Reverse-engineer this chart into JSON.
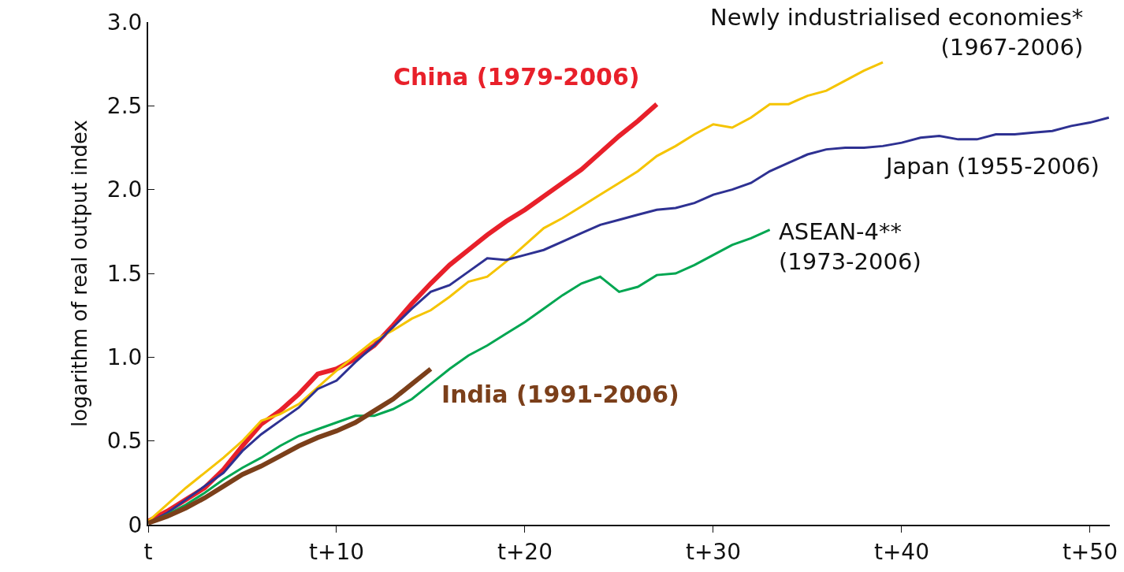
{
  "chart_data": {
    "type": "line",
    "ylabel": "logarithm of real output index",
    "categories": [
      "t",
      null,
      null,
      null,
      null,
      null,
      null,
      null,
      null,
      null,
      "t+10",
      null,
      null,
      null,
      null,
      null,
      null,
      null,
      null,
      null,
      "t+20",
      null,
      null,
      null,
      null,
      null,
      null,
      null,
      null,
      null,
      "t+30",
      null,
      null,
      null,
      null,
      null,
      null,
      null,
      null,
      null,
      "t+40",
      null,
      null,
      null,
      null,
      null,
      null,
      null,
      null,
      null,
      "t+50",
      null
    ],
    "ylim": [
      0,
      3.0
    ],
    "yticks": [
      0,
      0.5,
      {
        "value": 1,
        "label": "1.0"
      },
      1.5,
      {
        "value": 2,
        "label": "2.0"
      },
      2.5,
      {
        "value": 3,
        "label": "3.0"
      }
    ],
    "grid": false,
    "legend": false,
    "marker": "none",
    "line_style": "solid",
    "series": [
      {
        "name": "China (1979-2006)",
        "color": "#e8202a",
        "values": [
          0.02,
          0.08,
          0.15,
          0.22,
          0.33,
          0.47,
          0.6,
          0.68,
          0.78,
          0.9,
          0.93,
          0.99,
          1.07,
          1.19,
          1.32,
          1.44,
          1.55,
          1.64,
          1.73,
          1.81,
          1.88,
          1.96,
          2.04,
          2.12,
          2.22,
          2.32,
          2.41,
          2.51,
          null,
          null,
          null,
          null,
          null,
          null,
          null,
          null,
          null,
          null,
          null,
          null,
          null,
          null,
          null,
          null,
          null,
          null,
          null,
          null,
          null,
          null,
          null,
          null
        ]
      },
      {
        "name": "Newly industrialised economies*\n(1967-2006)",
        "color": "#f5c400",
        "values": [
          0.02,
          0.12,
          0.22,
          0.31,
          0.4,
          0.5,
          0.62,
          0.66,
          0.72,
          0.82,
          0.92,
          1.01,
          1.1,
          1.16,
          1.23,
          1.28,
          1.36,
          1.45,
          1.48,
          1.57,
          1.67,
          1.77,
          1.83,
          1.9,
          1.97,
          2.04,
          2.11,
          2.2,
          2.26,
          2.33,
          2.39,
          2.37,
          2.43,
          2.51,
          2.51,
          2.56,
          2.59,
          2.65,
          2.71,
          2.76,
          null,
          null,
          null,
          null,
          null,
          null,
          null,
          null,
          null,
          null,
          null,
          null
        ]
      },
      {
        "name": "Japan (1955-2006)",
        "color": "#2e3192",
        "values": [
          0.01,
          0.07,
          0.15,
          0.23,
          0.31,
          0.44,
          0.54,
          0.62,
          0.7,
          0.81,
          0.86,
          0.97,
          1.07,
          1.18,
          1.29,
          1.39,
          1.43,
          1.51,
          1.59,
          1.58,
          1.61,
          1.64,
          1.69,
          1.74,
          1.79,
          1.82,
          1.85,
          1.88,
          1.89,
          1.92,
          1.97,
          2.0,
          2.04,
          2.11,
          2.16,
          2.21,
          2.24,
          2.25,
          2.25,
          2.26,
          2.28,
          2.31,
          2.32,
          2.3,
          2.3,
          2.33,
          2.33,
          2.34,
          2.35,
          2.38,
          2.4,
          2.43
        ]
      },
      {
        "name": "ASEAN-4**\n(1973-2006)",
        "color": "#00a651",
        "values": [
          0.01,
          0.06,
          0.12,
          0.19,
          0.27,
          0.34,
          0.4,
          0.47,
          0.53,
          0.57,
          0.61,
          0.65,
          0.65,
          0.69,
          0.75,
          0.84,
          0.93,
          1.01,
          1.07,
          1.14,
          1.21,
          1.29,
          1.37,
          1.44,
          1.48,
          1.39,
          1.42,
          1.49,
          1.5,
          1.55,
          1.61,
          1.67,
          1.71,
          1.76,
          null,
          null,
          null,
          null,
          null,
          null,
          null,
          null,
          null,
          null,
          null,
          null,
          null,
          null,
          null,
          null,
          null,
          null
        ]
      },
      {
        "name": "India (1991-2006)",
        "color": "#7b3f1a",
        "values": [
          0.01,
          0.05,
          0.1,
          0.16,
          0.23,
          0.3,
          0.35,
          0.41,
          0.47,
          0.52,
          0.56,
          0.61,
          0.68,
          0.75,
          0.84,
          0.93,
          null,
          null,
          null,
          null,
          null,
          null,
          null,
          null,
          null,
          null,
          null,
          null,
          null,
          null,
          null,
          null,
          null,
          null,
          null,
          null,
          null,
          null,
          null,
          null,
          null,
          null,
          null,
          null,
          null,
          null,
          null,
          null,
          null,
          null,
          null,
          null
        ]
      }
    ]
  }
}
